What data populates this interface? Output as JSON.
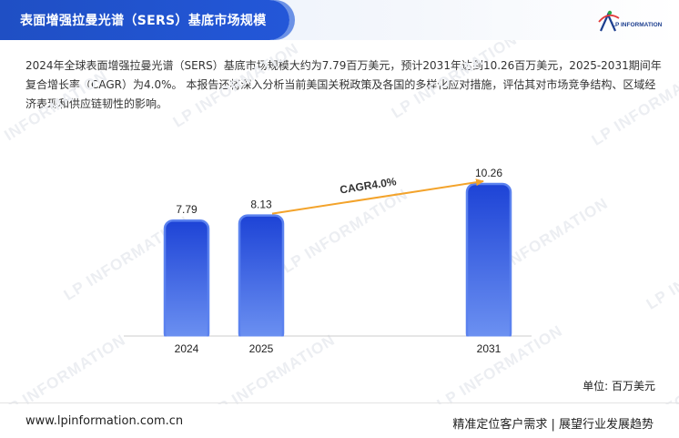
{
  "header": {
    "title": "表面增强拉曼光谱（SERS）基底市场规模",
    "logo_text": "LP INFORMATION",
    "logo_icon": "lp-information-logo-icon"
  },
  "intro": "2024年全球表面增强拉曼光谱（SERS）基底市场规模大约为7.79百万美元，预计2031年达到10.26百万美元，2025-2031期间年复合增长率（CAGR）为4.0%。 本报告还将深入分析当前美国关税政策及各国的多样化应对措施，评估其对市场竞争结构、区域经济表现和供应链韧性的影响。",
  "chart_data": {
    "type": "bar",
    "categories": [
      "2024",
      "2025",
      "2031"
    ],
    "values": [
      7.79,
      8.13,
      10.26
    ],
    "value_labels": [
      "7.79",
      "8.13",
      "10.26"
    ],
    "ylim": [
      0,
      11
    ],
    "grid": false,
    "annotation": {
      "text": "CAGR4.0%",
      "from": "2025",
      "to": "2031"
    },
    "colors": {
      "bar_top": "#1d43d6",
      "bar_bottom": "#6e93f2",
      "bar_outline": "#5b82ef",
      "arrow": "#f3a32b"
    }
  },
  "unit_label": "单位: 百万美元",
  "watermark_text": "LP INFORMATION",
  "footer": {
    "url": "www.lpinformation.com.cn",
    "tagline": "精准定位客户需求 | 展望行业发展趋势"
  }
}
